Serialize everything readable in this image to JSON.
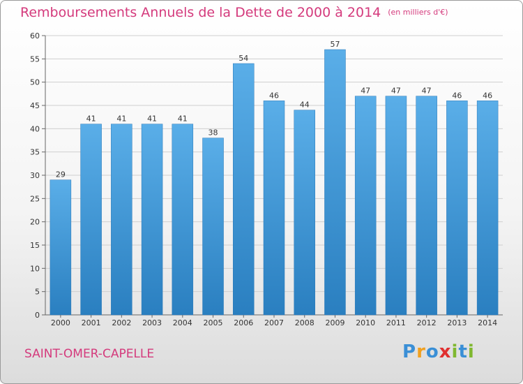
{
  "chart_data": {
    "type": "bar",
    "title": "Remboursements Annuels de la Dette de 2000 à 2014",
    "unit": "(en milliers d'€)",
    "categories": [
      "2000",
      "2001",
      "2002",
      "2003",
      "2004",
      "2005",
      "2006",
      "2007",
      "2008",
      "2009",
      "2010",
      "2011",
      "2012",
      "2013",
      "2014"
    ],
    "values": [
      29,
      41,
      41,
      41,
      41,
      38,
      54,
      46,
      44,
      57,
      47,
      47,
      47,
      46,
      46
    ],
    "ylim": [
      0,
      60
    ],
    "yticks": [
      0,
      5,
      10,
      15,
      20,
      25,
      30,
      35,
      40,
      45,
      50,
      55,
      60
    ],
    "grid": true,
    "colors": {
      "bar_top": "#5aaee8",
      "bar_bottom": "#2a7fc0",
      "title": "#d43a7c"
    }
  },
  "commune": "SAINT-OMER-CAPELLE",
  "brand": {
    "letters": [
      "P",
      "r",
      "o",
      "x",
      "i",
      "t",
      "i"
    ],
    "colors": [
      "#3a8fd6",
      "#f0a020",
      "#3a8fd6",
      "#e03030",
      "#80b830",
      "#3a8fd6",
      "#80b830"
    ]
  }
}
